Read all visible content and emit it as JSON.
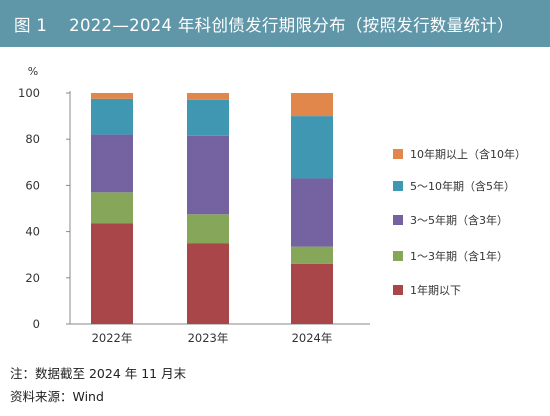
{
  "figure": {
    "number": "图 1",
    "title": "2022—2024 年科创债发行期限分布（按照发行数量统计）"
  },
  "chart_data": {
    "type": "bar",
    "stacked": true,
    "unit_label": "%",
    "categories": [
      "2022年",
      "2023年",
      "2024年"
    ],
    "ylim": [
      0,
      100
    ],
    "yticks": [
      "0",
      "20",
      "40",
      "60",
      "80",
      "100"
    ],
    "series": [
      {
        "name": "1年期以下",
        "color": "#a8464a",
        "values": [
          43.5,
          35,
          26
        ]
      },
      {
        "name": "1～3年期（含1年）",
        "color": "#86a759",
        "values": [
          13.5,
          12.5,
          7.5
        ]
      },
      {
        "name": "3～5年期（含3年）",
        "color": "#7562a1",
        "values": [
          25,
          34,
          29.5
        ]
      },
      {
        "name": "5～10年期（含5年）",
        "color": "#3f97b2",
        "values": [
          15.5,
          15.5,
          27
        ]
      },
      {
        "name": "10年期以上（含10年）",
        "color": "#e2874b",
        "values": [
          2.5,
          3,
          10
        ]
      }
    ],
    "legend_position": "right"
  },
  "footer": {
    "note": "注：数据截至 2024 年 11 月末",
    "source": "资料来源：Wind"
  }
}
